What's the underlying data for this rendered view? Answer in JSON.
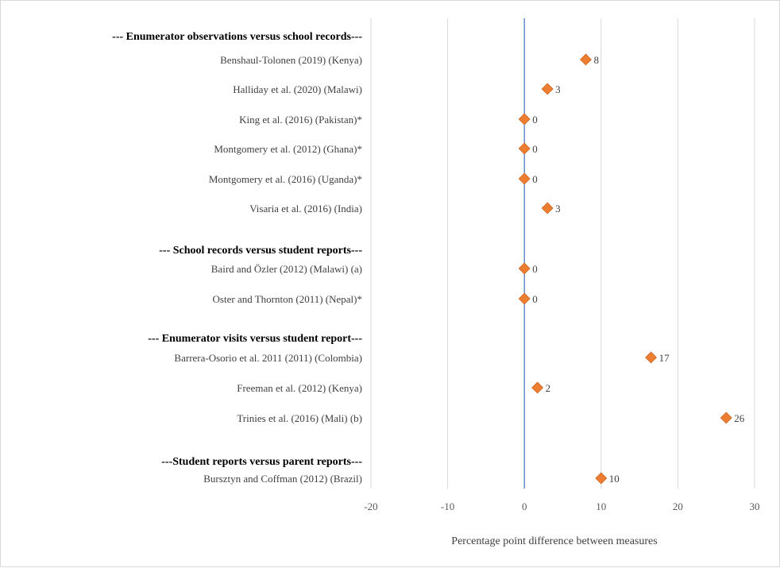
{
  "chart_data": {
    "type": "scatter",
    "title": "",
    "xlabel": "Percentage point difference between measures",
    "xlim": [
      -20,
      30
    ],
    "xticks": [
      -20,
      -10,
      0,
      10,
      20,
      30
    ],
    "grid": true,
    "legend": "none",
    "marker": "diamond",
    "marker_color": "#ED7D31",
    "zero_line_color": "#4472C4",
    "rows": [
      {
        "kind": "header",
        "label": "--- Enumerator observations versus school records---"
      },
      {
        "kind": "point",
        "label": "Benshaul-Tolonen (2019) (Kenya)",
        "value": 8,
        "value_label": "8"
      },
      {
        "kind": "point",
        "label": "Halliday et al. (2020) (Malawi)",
        "value": 3,
        "value_label": "3"
      },
      {
        "kind": "point",
        "label": "King et al. (2016) (Pakistan)*",
        "value": 0,
        "value_label": "0"
      },
      {
        "kind": "point",
        "label": "Montgomery et al. (2012) (Ghana)*",
        "value": 0,
        "value_label": "0"
      },
      {
        "kind": "point",
        "label": "Montgomery et al. (2016) (Uganda)*",
        "value": 0,
        "value_label": "0"
      },
      {
        "kind": "point",
        "label": "Visaria et al. (2016) (India)",
        "value": 3,
        "value_label": "3"
      },
      {
        "kind": "header",
        "label": "--- School records versus student reports---"
      },
      {
        "kind": "point",
        "label": "Baird and Özler (2012) (Malawi) (a)",
        "value": 0,
        "value_label": "0"
      },
      {
        "kind": "point",
        "label": "Oster and Thornton (2011) (Nepal)*",
        "value": 0,
        "value_label": "0"
      },
      {
        "kind": "header",
        "label": "--- Enumerator visits versus student report---"
      },
      {
        "kind": "point",
        "label": "Barrera-Osorio et al. 2011 (2011) (Colombia)",
        "value": 16.5,
        "value_label": "17"
      },
      {
        "kind": "point",
        "label": "Freeman et al. (2012) (Kenya)",
        "value": 1.7,
        "value_label": "2"
      },
      {
        "kind": "point",
        "label": "Trinies et al. (2016) (Mali) (b)",
        "value": 26.3,
        "value_label": "26"
      },
      {
        "kind": "header",
        "label": "---Student reports versus parent reports---"
      },
      {
        "kind": "point",
        "label": "Bursztyn and Coffman (2012) (Brazil)",
        "value": 10,
        "value_label": "10"
      }
    ]
  }
}
